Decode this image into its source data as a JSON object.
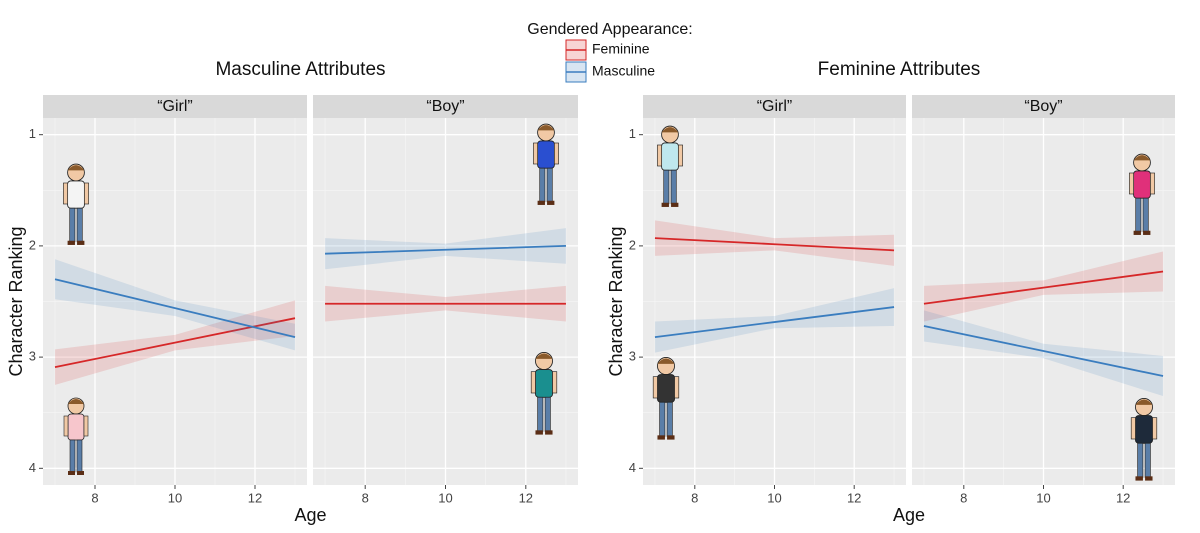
{
  "legend": {
    "title": "Gendered Appearance:",
    "entries": [
      {
        "name": "Feminine",
        "color": "#d62728"
      },
      {
        "name": "Masculine",
        "color": "#3a7dbf"
      }
    ]
  },
  "chart_data": [
    {
      "type": "line",
      "title": "Masculine Attributes",
      "xlabel": "Age",
      "ylabel": "Character Ranking",
      "xlim": [
        6.7,
        13.3
      ],
      "xticks": [
        8,
        10,
        12
      ],
      "xminor": [
        7,
        9,
        11,
        13
      ],
      "ylim": [
        0.85,
        4.15
      ],
      "y_reversed": true,
      "yticks": [
        1,
        2,
        3,
        4
      ],
      "yminor": [
        1.5,
        2.5,
        3.5
      ],
      "grid": true,
      "panels": [
        {
          "title": "“Girl”",
          "series": [
            {
              "color": "#d62728",
              "x": [
                7,
                10,
                13
              ],
              "values": [
                3.09,
                2.87,
                2.65
              ],
              "lower": [
                2.93,
                2.8,
                2.49
              ],
              "upper": [
                3.25,
                2.94,
                2.81
              ]
            },
            {
              "color": "#3a7dbf",
              "x": [
                7,
                10,
                13
              ],
              "values": [
                2.3,
                2.56,
                2.82
              ],
              "lower": [
                2.12,
                2.49,
                2.7
              ],
              "upper": [
                2.48,
                2.63,
                2.94
              ]
            }
          ]
        },
        {
          "title": "“Boy”",
          "series": [
            {
              "color": "#d62728",
              "x": [
                7,
                10,
                13
              ],
              "values": [
                2.52,
                2.52,
                2.52
              ],
              "lower": [
                2.36,
                2.46,
                2.36
              ],
              "upper": [
                2.68,
                2.58,
                2.68
              ]
            },
            {
              "color": "#3a7dbf",
              "x": [
                7,
                10,
                13
              ],
              "values": [
                2.07,
                2.035,
                2.0
              ],
              "lower": [
                1.93,
                1.98,
                1.84
              ],
              "upper": [
                2.21,
                2.09,
                2.16
              ]
            }
          ]
        }
      ]
    },
    {
      "type": "line",
      "title": "Feminine Attributes",
      "xlabel": "Age",
      "ylabel": "Character Ranking",
      "xlim": [
        6.7,
        13.3
      ],
      "xticks": [
        8,
        10,
        12
      ],
      "xminor": [
        7,
        9,
        11,
        13
      ],
      "ylim": [
        0.85,
        4.15
      ],
      "y_reversed": true,
      "yticks": [
        1,
        2,
        3,
        4
      ],
      "yminor": [
        1.5,
        2.5,
        3.5
      ],
      "grid": true,
      "panels": [
        {
          "title": "“Girl”",
          "series": [
            {
              "color": "#d62728",
              "x": [
                7,
                10,
                13
              ],
              "values": [
                1.93,
                1.985,
                2.04
              ],
              "lower": [
                1.77,
                1.93,
                1.9
              ],
              "upper": [
                2.09,
                2.04,
                2.18
              ]
            },
            {
              "color": "#3a7dbf",
              "x": [
                7,
                10,
                13
              ],
              "values": [
                2.82,
                2.685,
                2.55
              ],
              "lower": [
                2.68,
                2.63,
                2.38
              ],
              "upper": [
                2.96,
                2.74,
                2.72
              ]
            }
          ]
        },
        {
          "title": "“Boy”",
          "series": [
            {
              "color": "#d62728",
              "x": [
                7,
                10,
                13
              ],
              "values": [
                2.52,
                2.375,
                2.23
              ],
              "lower": [
                2.36,
                2.31,
                2.05
              ],
              "upper": [
                2.68,
                2.44,
                2.41
              ]
            },
            {
              "color": "#3a7dbf",
              "x": [
                7,
                10,
                13
              ],
              "values": [
                2.72,
                2.945,
                3.17
              ],
              "lower": [
                2.58,
                2.88,
                2.99
              ],
              "upper": [
                2.86,
                3.01,
                3.35
              ]
            }
          ]
        }
      ]
    }
  ]
}
